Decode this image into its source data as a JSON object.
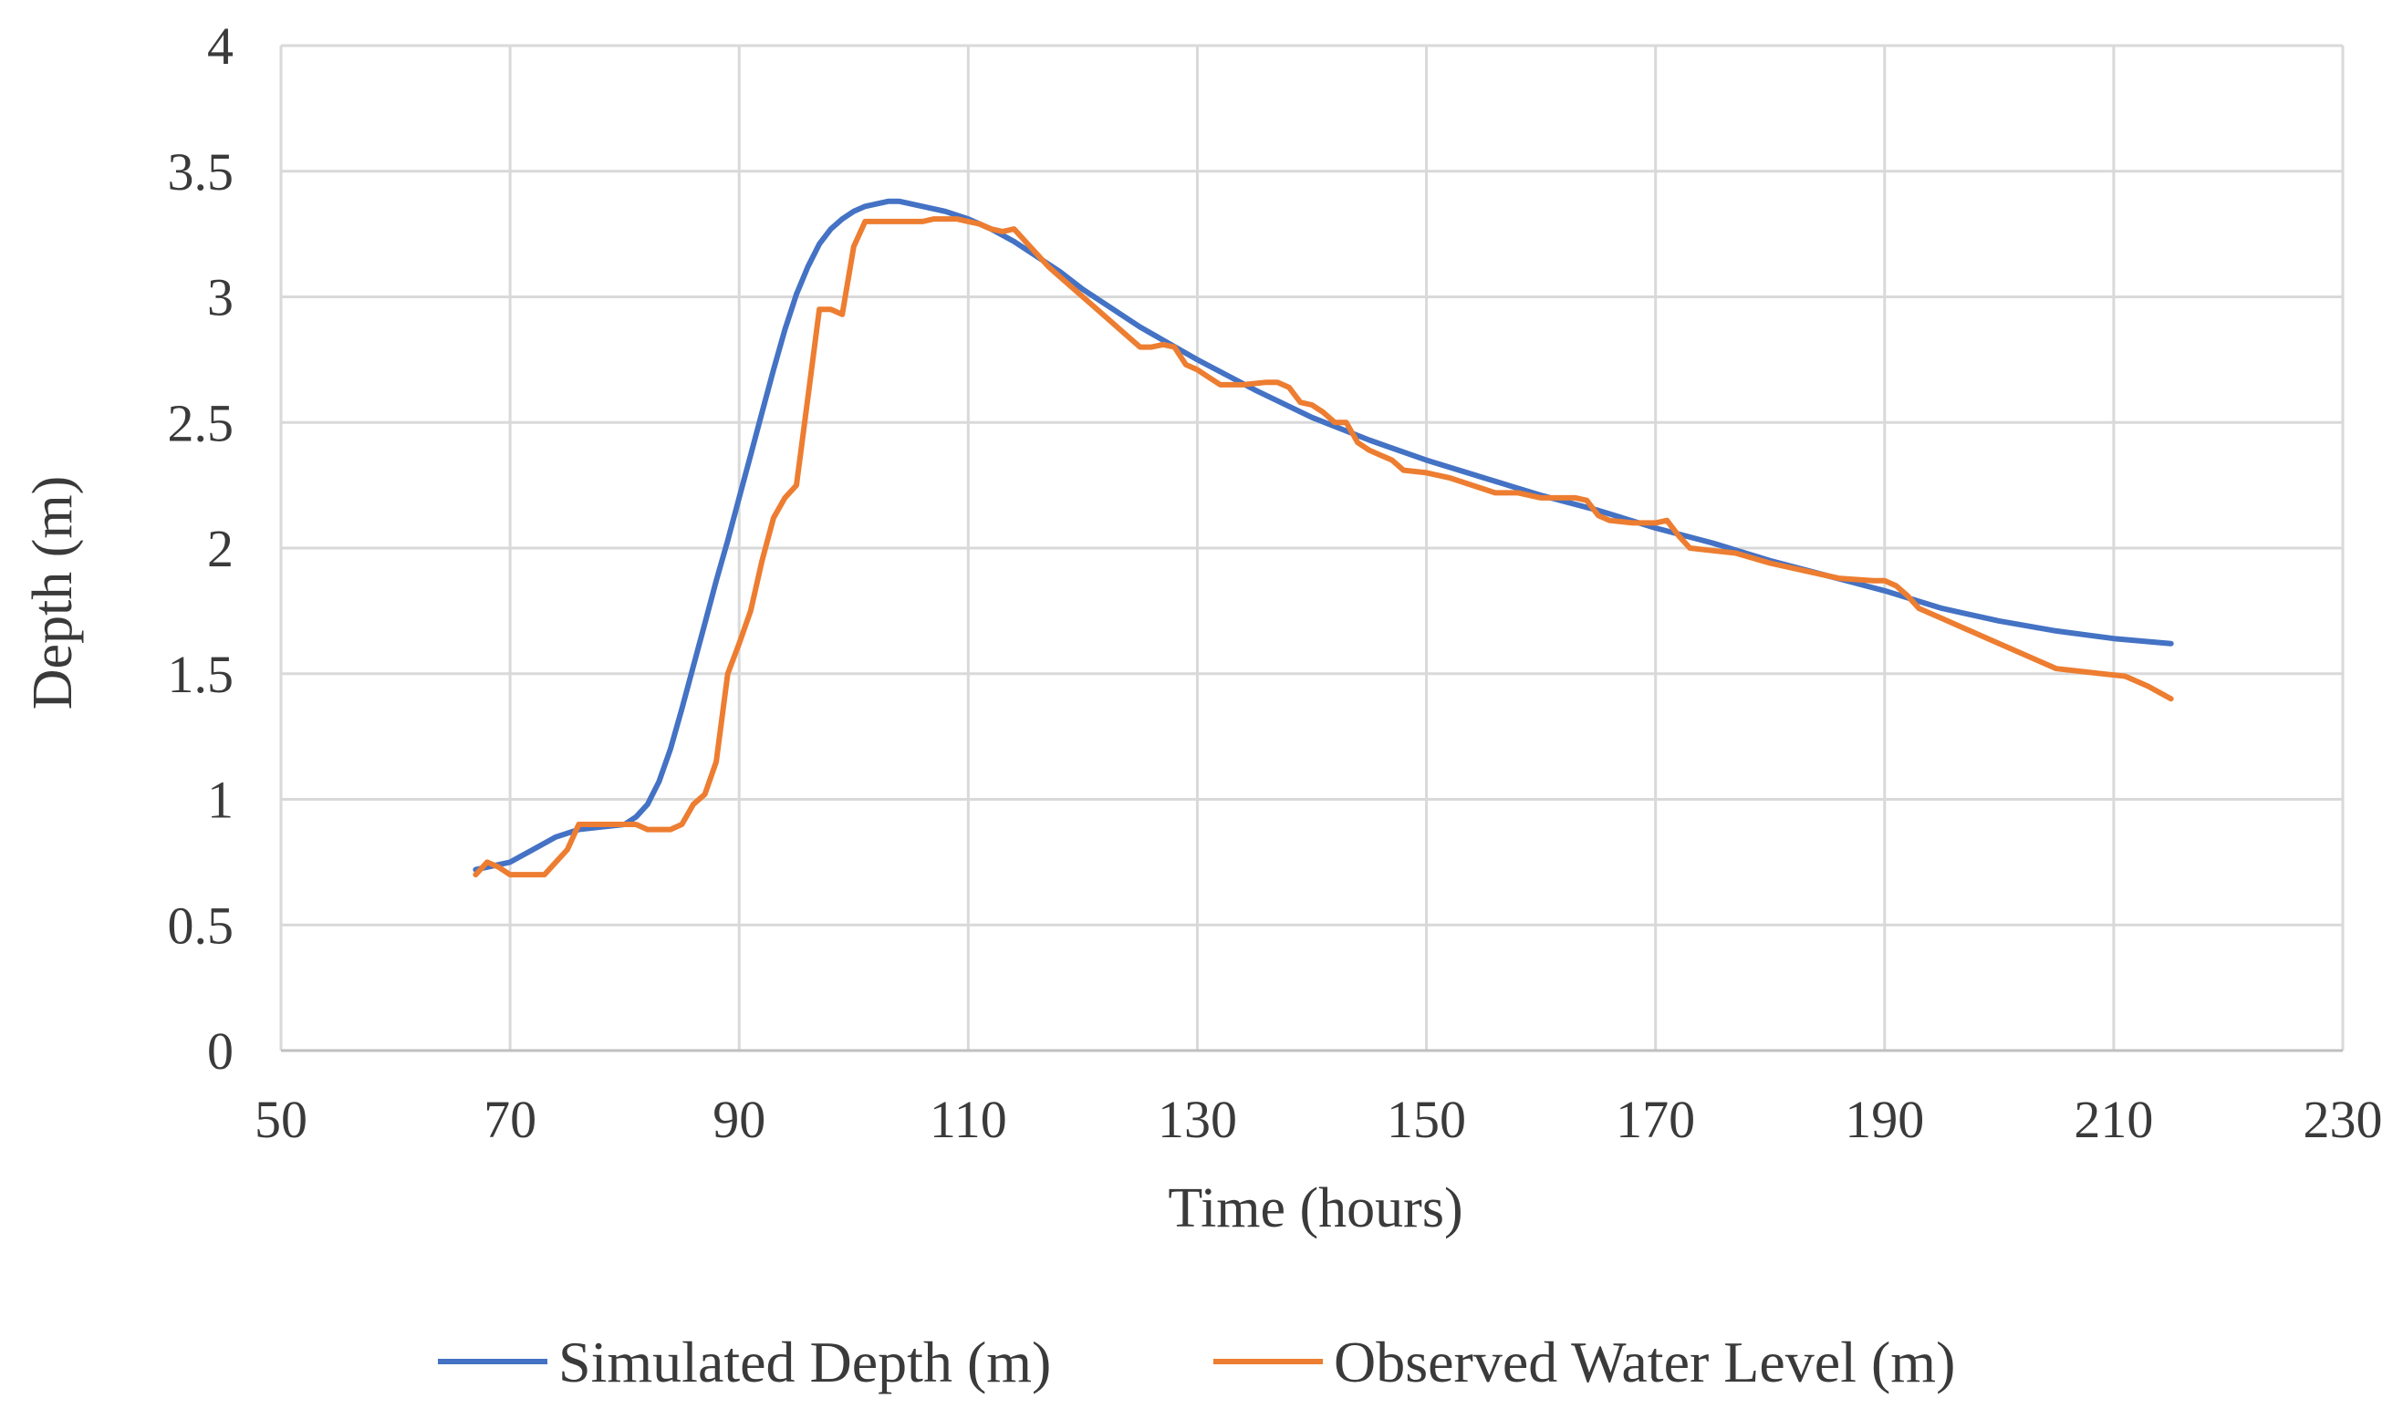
{
  "chart_data": {
    "type": "line",
    "title": "",
    "xlabel": "Time (hours)",
    "ylabel": "Depth (m)",
    "xlim": [
      50,
      230
    ],
    "ylim": [
      0,
      4
    ],
    "x_ticks": [
      50,
      70,
      90,
      110,
      130,
      150,
      170,
      190,
      210,
      230
    ],
    "y_ticks": [
      0,
      0.5,
      1,
      1.5,
      2,
      2.5,
      3,
      3.5,
      4
    ],
    "x_tick_labels": [
      "50",
      "70",
      "90",
      "110",
      "130",
      "150",
      "170",
      "190",
      "210",
      "230"
    ],
    "y_tick_labels": [
      "0",
      "0.5",
      "1",
      "1.5",
      "2",
      "2.5",
      "3",
      "3.5",
      "4"
    ],
    "grid": true,
    "legend_position": "bottom",
    "series": [
      {
        "name": "Simulated Depth (m)",
        "color": "#4472c4",
        "x": [
          67,
          70,
          72,
          74,
          76,
          78,
          80,
          81,
          82,
          83,
          84,
          85,
          86,
          87,
          88,
          89,
          90,
          91,
          92,
          93,
          94,
          95,
          96,
          97,
          98,
          99,
          100,
          101,
          102,
          103,
          104,
          105,
          106,
          107,
          108,
          110,
          112,
          114,
          116,
          118,
          120,
          125,
          130,
          135,
          140,
          145,
          150,
          155,
          160,
          165,
          170,
          175,
          180,
          185,
          190,
          195,
          200,
          205,
          210,
          215
        ],
        "y": [
          0.72,
          0.75,
          0.8,
          0.85,
          0.88,
          0.89,
          0.9,
          0.93,
          0.98,
          1.07,
          1.2,
          1.36,
          1.53,
          1.7,
          1.87,
          2.03,
          2.2,
          2.37,
          2.54,
          2.71,
          2.87,
          3.01,
          3.12,
          3.21,
          3.27,
          3.31,
          3.34,
          3.36,
          3.37,
          3.38,
          3.38,
          3.37,
          3.36,
          3.35,
          3.34,
          3.31,
          3.27,
          3.22,
          3.16,
          3.1,
          3.03,
          2.88,
          2.75,
          2.63,
          2.52,
          2.43,
          2.35,
          2.28,
          2.21,
          2.15,
          2.08,
          2.02,
          1.95,
          1.89,
          1.83,
          1.76,
          1.71,
          1.67,
          1.64,
          1.62
        ]
      },
      {
        "name": "Observed Water Level (m)",
        "color": "#ed7d31",
        "x": [
          67,
          68,
          69,
          70,
          71,
          72,
          73,
          74,
          75,
          76,
          77,
          78,
          79,
          80,
          81,
          82,
          83,
          84,
          85,
          86,
          87,
          88,
          89,
          90,
          91,
          92,
          93,
          94,
          95,
          96,
          97,
          98,
          99,
          100,
          101,
          102,
          103,
          104,
          105,
          106,
          107,
          108,
          109,
          110,
          111,
          112,
          113,
          114,
          115,
          116,
          117,
          118,
          120,
          122,
          124,
          125,
          126,
          127,
          128,
          129,
          130,
          131,
          132,
          134,
          136,
          137,
          138,
          139,
          140,
          141,
          142,
          143,
          144,
          145,
          146,
          147,
          148,
          150,
          152,
          154,
          156,
          158,
          160,
          162,
          163,
          164,
          165,
          166,
          168,
          170,
          171,
          172,
          173,
          175,
          177,
          180,
          183,
          186,
          189,
          190,
          191,
          192,
          193,
          195,
          197,
          199,
          201,
          203,
          205,
          207,
          209,
          211,
          213,
          215
        ],
        "y": [
          0.7,
          0.75,
          0.73,
          0.7,
          0.7,
          0.7,
          0.7,
          0.75,
          0.8,
          0.9,
          0.9,
          0.9,
          0.9,
          0.9,
          0.9,
          0.88,
          0.88,
          0.88,
          0.9,
          0.98,
          1.02,
          1.15,
          1.5,
          1.62,
          1.75,
          1.95,
          2.12,
          2.2,
          2.25,
          2.6,
          2.95,
          2.95,
          2.93,
          3.2,
          3.3,
          3.3,
          3.3,
          3.3,
          3.3,
          3.3,
          3.31,
          3.31,
          3.31,
          3.3,
          3.29,
          3.27,
          3.26,
          3.27,
          3.22,
          3.17,
          3.12,
          3.08,
          3.0,
          2.92,
          2.84,
          2.8,
          2.8,
          2.81,
          2.8,
          2.73,
          2.71,
          2.68,
          2.65,
          2.65,
          2.66,
          2.66,
          2.64,
          2.58,
          2.57,
          2.54,
          2.5,
          2.5,
          2.42,
          2.39,
          2.37,
          2.35,
          2.31,
          2.3,
          2.28,
          2.25,
          2.22,
          2.22,
          2.2,
          2.2,
          2.2,
          2.19,
          2.13,
          2.11,
          2.1,
          2.1,
          2.11,
          2.05,
          2.0,
          1.99,
          1.98,
          1.94,
          1.91,
          1.88,
          1.87,
          1.87,
          1.85,
          1.81,
          1.76,
          1.72,
          1.68,
          1.64,
          1.6,
          1.56,
          1.52,
          1.51,
          1.5,
          1.49,
          1.45,
          1.4
        ]
      }
    ]
  }
}
